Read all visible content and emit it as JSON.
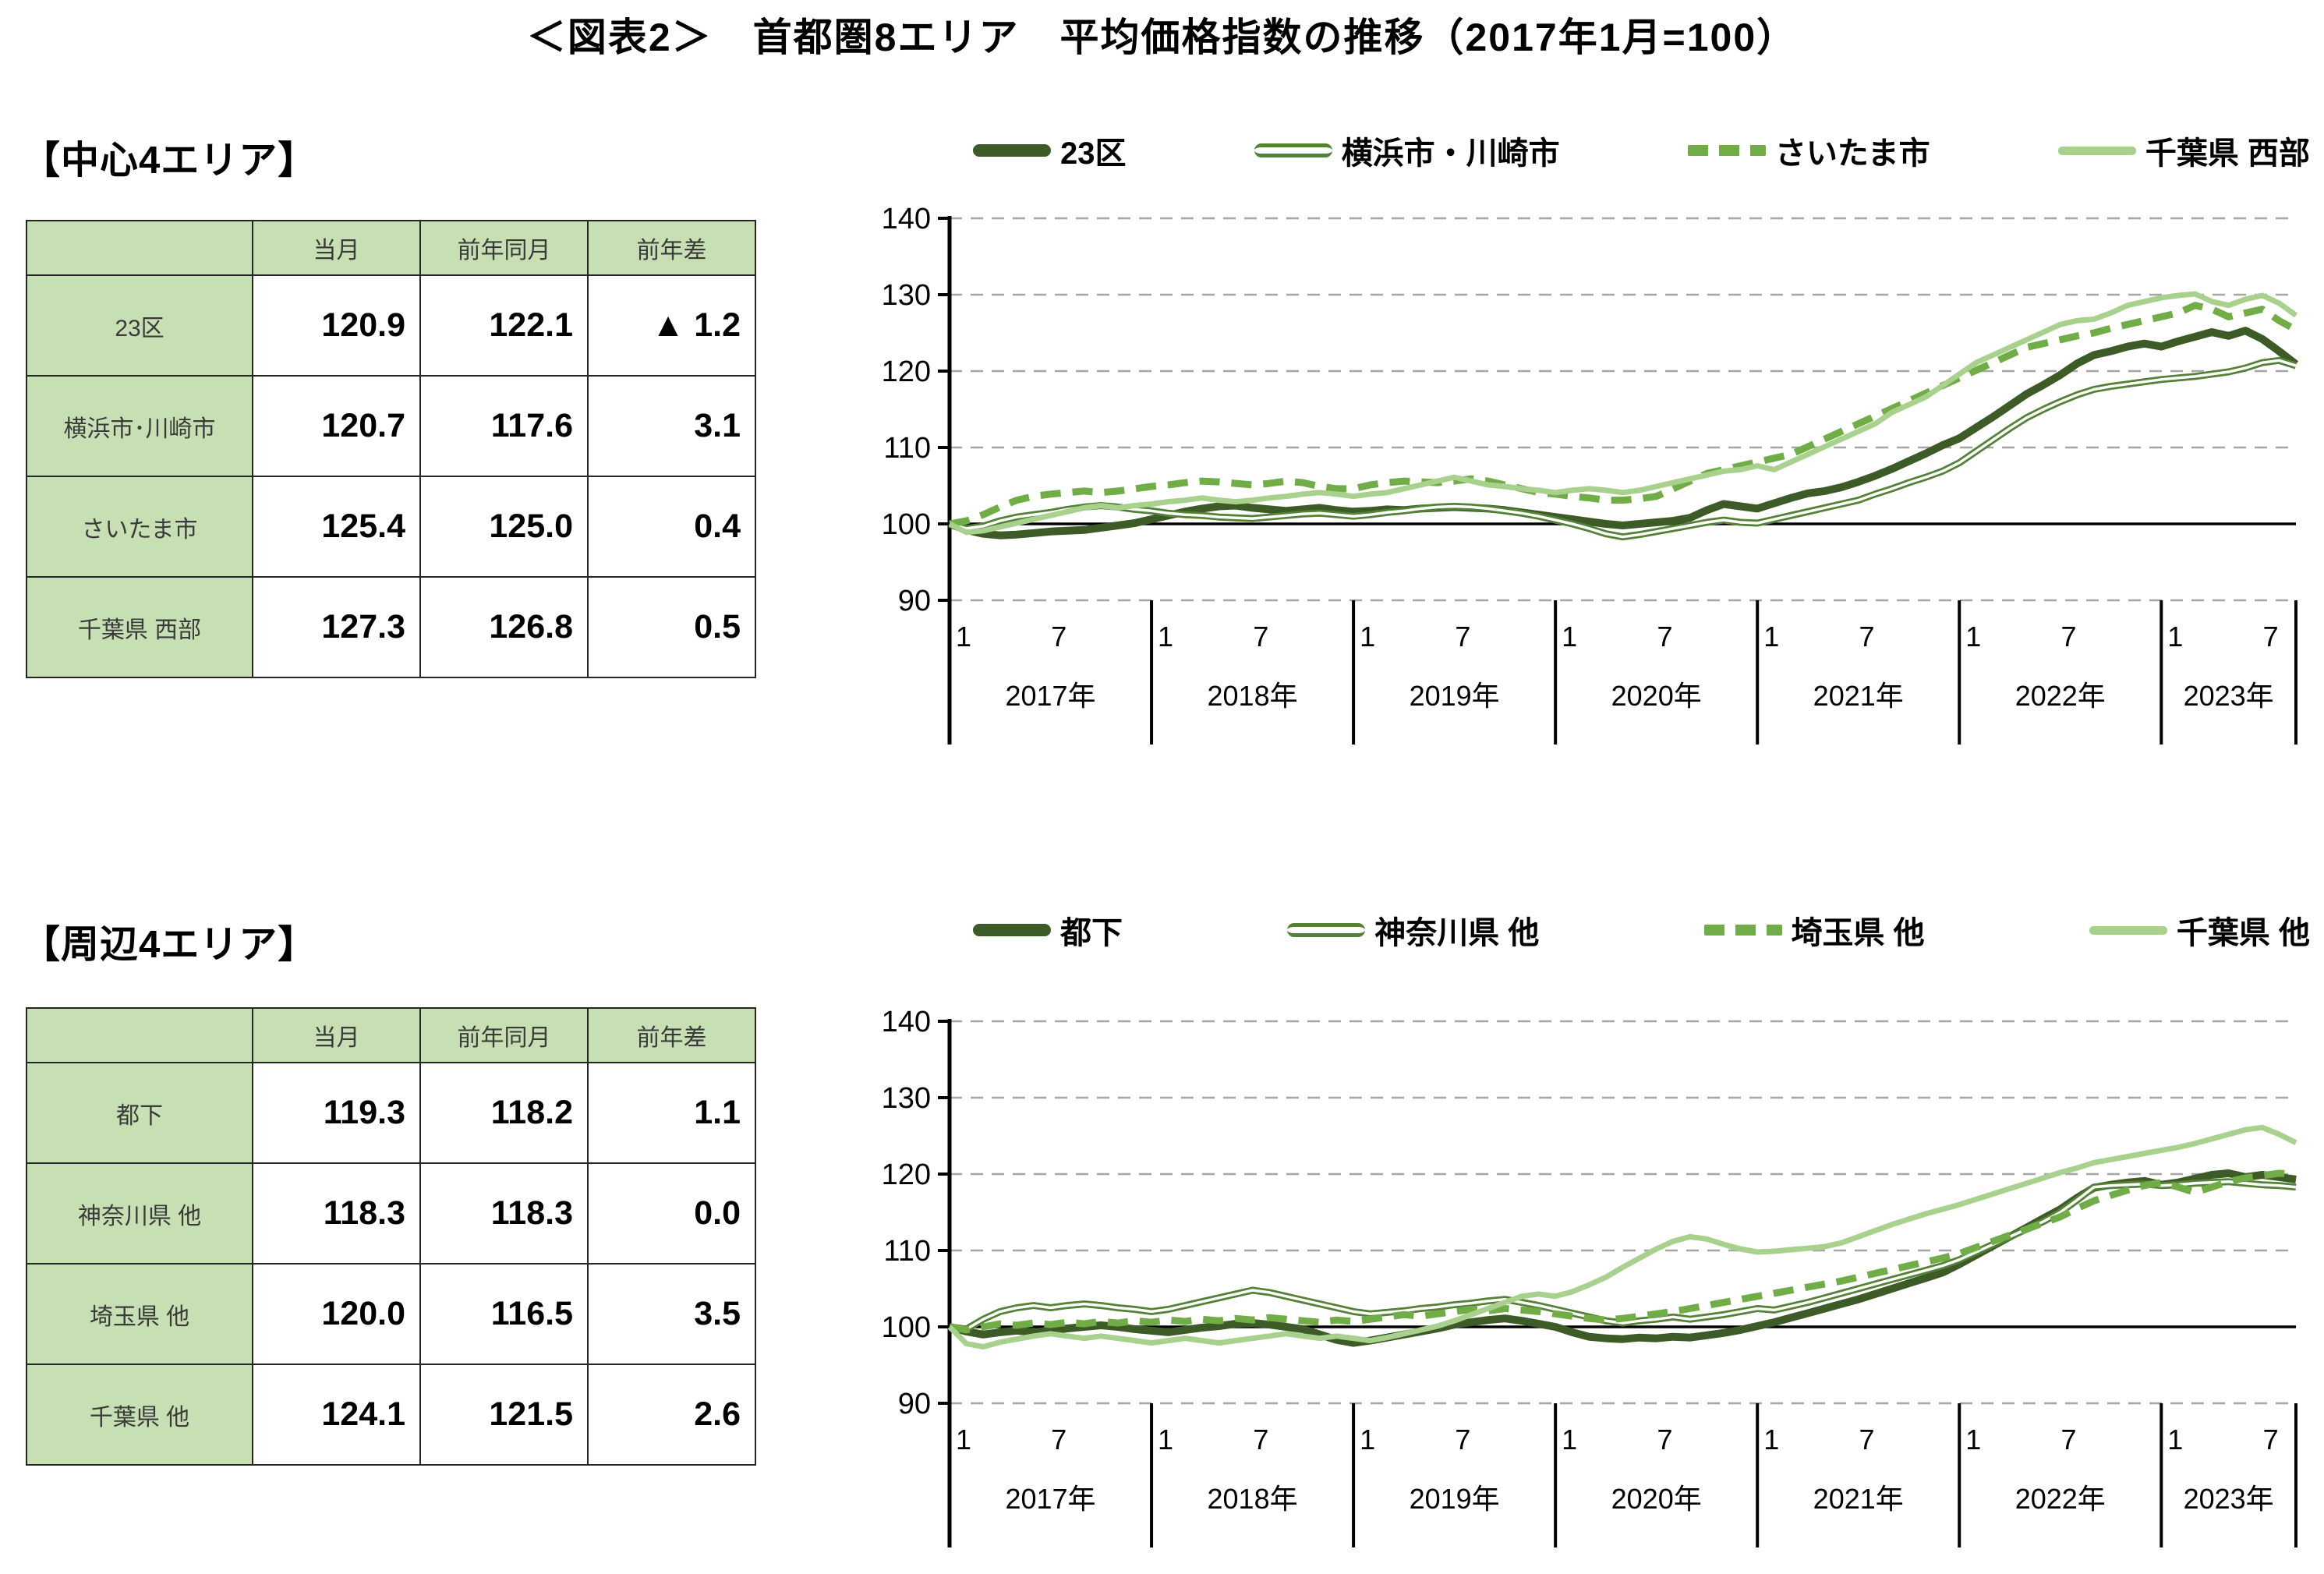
{
  "title": "＜図表2＞　首都圏8エリア　平均価格指数の推移（2017年1月=100）",
  "colors": {
    "dark_green": "#3c5b26",
    "mid_green": "#538135",
    "bright_green": "#70ad47",
    "light_green": "#a9d18e",
    "table_header_bg": "#c6e0b4",
    "grid_gray": "#a6a6a6",
    "axis_black": "#000000"
  },
  "sections": [
    {
      "heading": "【中心4エリア】",
      "table": {
        "columns": [
          "",
          "当月",
          "前年同月",
          "前年差"
        ],
        "rows": [
          {
            "label": "23区",
            "current": "120.9",
            "prev_year": "122.1",
            "diff": "▲ 1.2"
          },
          {
            "label": "横浜市･川崎市",
            "current": "120.7",
            "prev_year": "117.6",
            "diff": "3.1"
          },
          {
            "label": "さいたま市",
            "current": "125.4",
            "prev_year": "125.0",
            "diff": "0.4"
          },
          {
            "label": "千葉県 西部",
            "current": "127.3",
            "prev_year": "126.8",
            "diff": "0.5"
          }
        ]
      }
    },
    {
      "heading": "【周辺4エリア】",
      "table": {
        "columns": [
          "",
          "当月",
          "前年同月",
          "前年差"
        ],
        "rows": [
          {
            "label": "都下",
            "current": "119.3",
            "prev_year": "118.2",
            "diff": "1.1"
          },
          {
            "label": "神奈川県 他",
            "current": "118.3",
            "prev_year": "118.3",
            "diff": "0.0"
          },
          {
            "label": "埼玉県 他",
            "current": "120.0",
            "prev_year": "116.5",
            "diff": "3.5"
          },
          {
            "label": "千葉県 他",
            "current": "124.1",
            "prev_year": "121.5",
            "diff": "2.6"
          }
        ]
      }
    }
  ],
  "chart_data": [
    {
      "type": "line",
      "title": "中心4エリア 平均価格指数の推移",
      "x_unit": "month",
      "start": "2017-01",
      "end": "2023-09",
      "ylim": [
        90,
        140
      ],
      "yticks": [
        90,
        100,
        110,
        120,
        130,
        140
      ],
      "baseline": 100,
      "grid": "dashed-horizontal",
      "legend_position": "top",
      "x_axis": {
        "month_ticks": [
          "1",
          "7"
        ],
        "year_labels": [
          "2017年",
          "2018年",
          "2019年",
          "2020年",
          "2021年",
          "2022年",
          "2023年"
        ]
      },
      "series": [
        {
          "name": "23区",
          "style": "solid-thick",
          "color": "#3c5b26",
          "values": [
            100.0,
            99.2,
            98.7,
            98.5,
            98.6,
            98.8,
            99.0,
            99.1,
            99.2,
            99.5,
            99.8,
            100.1,
            100.6,
            101.1,
            101.6,
            102.0,
            102.3,
            102.4,
            102.1,
            101.9,
            101.7,
            101.9,
            102.1,
            101.8,
            101.6,
            101.7,
            101.9,
            101.8,
            102.0,
            102.1,
            102.2,
            102.1,
            102.0,
            101.8,
            101.5,
            101.2,
            100.9,
            100.6,
            100.3,
            100.0,
            99.8,
            100.0,
            100.2,
            100.4,
            100.8,
            101.8,
            102.6,
            102.3,
            102.0,
            102.7,
            103.4,
            104.0,
            104.3,
            104.8,
            105.5,
            106.3,
            107.2,
            108.2,
            109.2,
            110.3,
            111.2,
            112.6,
            114.0,
            115.5,
            117.0,
            118.2,
            119.5,
            121.0,
            122.1,
            122.6,
            123.2,
            123.6,
            123.2,
            123.9,
            124.5,
            125.1,
            124.6,
            125.3,
            124.2,
            122.6,
            120.9
          ]
        },
        {
          "name": "横浜市・川崎市",
          "style": "double",
          "color": "#538135",
          "values": [
            100.0,
            99.4,
            99.7,
            100.4,
            100.9,
            101.2,
            101.5,
            101.9,
            102.2,
            102.4,
            102.2,
            101.9,
            101.7,
            101.4,
            101.2,
            101.1,
            100.9,
            100.8,
            100.7,
            100.9,
            101.1,
            101.3,
            101.4,
            101.2,
            101.0,
            101.2,
            101.5,
            101.7,
            102.0,
            102.2,
            102.3,
            102.2,
            102.0,
            101.7,
            101.4,
            101.0,
            100.5,
            100.0,
            99.4,
            98.7,
            98.3,
            98.6,
            99.0,
            99.4,
            99.8,
            100.2,
            100.5,
            100.2,
            100.1,
            100.6,
            101.1,
            101.6,
            102.1,
            102.6,
            103.1,
            103.9,
            104.6,
            105.4,
            106.1,
            106.9,
            108.0,
            109.5,
            111.0,
            112.5,
            113.9,
            115.0,
            116.0,
            116.9,
            117.6,
            118.0,
            118.3,
            118.6,
            118.9,
            119.1,
            119.3,
            119.6,
            119.9,
            120.4,
            121.1,
            121.4,
            120.7
          ]
        },
        {
          "name": "さいたま市",
          "style": "dashed",
          "color": "#70ad47",
          "values": [
            100.0,
            100.4,
            101.2,
            102.2,
            103.1,
            103.6,
            103.9,
            104.1,
            104.3,
            104.1,
            104.3,
            104.6,
            104.9,
            105.1,
            105.4,
            105.6,
            105.5,
            105.3,
            105.1,
            105.3,
            105.6,
            105.4,
            104.9,
            104.6,
            104.6,
            105.1,
            105.4,
            105.6,
            105.5,
            105.4,
            105.6,
            105.9,
            105.6,
            105.1,
            104.6,
            104.1,
            103.9,
            103.6,
            103.4,
            103.1,
            103.1,
            103.3,
            103.6,
            104.6,
            105.6,
            106.6,
            107.1,
            107.6,
            108.1,
            108.6,
            109.1,
            110.1,
            111.1,
            112.1,
            113.1,
            114.1,
            115.1,
            116.1,
            117.1,
            118.1,
            119.1,
            120.1,
            121.1,
            122.1,
            123.1,
            123.6,
            124.1,
            124.6,
            125.0,
            125.6,
            126.1,
            126.6,
            127.1,
            127.6,
            128.6,
            128.1,
            127.1,
            127.6,
            128.1,
            126.6,
            125.4
          ]
        },
        {
          "name": "千葉県 西部",
          "style": "solid",
          "color": "#a9d18e",
          "values": [
            100.0,
            98.9,
            99.1,
            99.6,
            100.1,
            100.6,
            101.1,
            101.6,
            102.1,
            102.4,
            102.1,
            102.4,
            102.6,
            102.9,
            103.1,
            103.4,
            103.1,
            102.9,
            103.1,
            103.4,
            103.6,
            103.9,
            104.1,
            103.9,
            103.6,
            103.9,
            104.1,
            104.6,
            105.1,
            105.6,
            106.1,
            105.6,
            105.1,
            104.9,
            104.6,
            104.4,
            104.1,
            104.4,
            104.6,
            104.4,
            104.1,
            104.4,
            104.9,
            105.4,
            105.9,
            106.4,
            106.9,
            107.1,
            107.6,
            107.1,
            108.1,
            109.1,
            110.1,
            111.1,
            112.1,
            113.1,
            114.6,
            115.6,
            116.6,
            118.1,
            119.6,
            121.1,
            122.1,
            123.1,
            124.1,
            125.1,
            126.1,
            126.6,
            126.8,
            127.6,
            128.6,
            129.1,
            129.6,
            129.9,
            130.1,
            129.1,
            128.6,
            129.4,
            129.9,
            128.9,
            127.3
          ]
        }
      ]
    },
    {
      "type": "line",
      "title": "周辺4エリア 平均価格指数の推移",
      "x_unit": "month",
      "start": "2017-01",
      "end": "2023-09",
      "ylim": [
        90,
        140
      ],
      "yticks": [
        90,
        100,
        110,
        120,
        130,
        140
      ],
      "baseline": 100,
      "grid": "dashed-horizontal",
      "legend_position": "top",
      "x_axis": {
        "month_ticks": [
          "1",
          "7"
        ],
        "year_labels": [
          "2017年",
          "2018年",
          "2019年",
          "2020年",
          "2021年",
          "2022年",
          "2023年"
        ]
      },
      "series": [
        {
          "name": "都下",
          "style": "solid-thick",
          "color": "#3c5b26",
          "values": [
            100.0,
            99.4,
            99.0,
            99.3,
            99.5,
            99.3,
            99.5,
            99.8,
            100.0,
            100.2,
            100.0,
            99.7,
            99.5,
            99.3,
            99.6,
            99.9,
            100.1,
            100.4,
            100.5,
            100.3,
            100.0,
            99.7,
            99.0,
            98.3,
            97.9,
            98.2,
            98.6,
            99.0,
            99.4,
            99.8,
            100.3,
            100.6,
            100.9,
            101.1,
            100.8,
            100.4,
            100.0,
            99.3,
            98.7,
            98.5,
            98.4,
            98.6,
            98.5,
            98.7,
            98.6,
            98.9,
            99.2,
            99.6,
            100.1,
            100.6,
            101.2,
            101.8,
            102.4,
            103.0,
            103.6,
            104.3,
            105.0,
            105.7,
            106.4,
            107.1,
            108.2,
            109.4,
            110.6,
            111.8,
            113.0,
            114.2,
            115.4,
            116.9,
            118.2,
            118.6,
            118.9,
            119.1,
            118.6,
            118.9,
            119.4,
            119.9,
            120.1,
            119.6,
            119.9,
            119.6,
            119.3
          ]
        },
        {
          "name": "神奈川県 他",
          "style": "double",
          "color": "#538135",
          "values": [
            100.0,
            99.7,
            101.0,
            102.0,
            102.5,
            102.8,
            102.5,
            102.8,
            103.0,
            102.8,
            102.5,
            102.3,
            102.0,
            102.3,
            102.8,
            103.3,
            103.8,
            104.3,
            104.8,
            104.5,
            104.0,
            103.5,
            103.0,
            102.5,
            102.0,
            101.7,
            101.9,
            102.1,
            102.4,
            102.6,
            102.9,
            103.1,
            103.4,
            103.6,
            103.2,
            102.8,
            102.3,
            101.8,
            101.3,
            100.8,
            100.5,
            100.8,
            101.0,
            101.3,
            101.0,
            101.3,
            101.6,
            102.0,
            102.4,
            102.2,
            102.7,
            103.2,
            103.8,
            104.4,
            105.0,
            105.6,
            106.2,
            106.8,
            107.4,
            108.0,
            108.8,
            109.8,
            110.8,
            111.8,
            112.8,
            113.8,
            115.0,
            116.6,
            118.3,
            118.5,
            118.6,
            118.7,
            118.5,
            118.6,
            118.8,
            118.9,
            119.0,
            118.8,
            118.6,
            118.5,
            118.3
          ]
        },
        {
          "name": "埼玉県 他",
          "style": "dashed",
          "color": "#70ad47",
          "values": [
            100.0,
            99.6,
            100.0,
            100.4,
            100.2,
            100.5,
            100.3,
            100.6,
            100.4,
            100.7,
            100.5,
            100.8,
            100.6,
            100.9,
            100.7,
            101.0,
            100.8,
            101.1,
            100.9,
            101.2,
            101.0,
            100.8,
            100.6,
            100.9,
            100.7,
            101.0,
            101.3,
            101.6,
            101.4,
            101.7,
            102.0,
            102.3,
            102.1,
            102.4,
            102.2,
            102.0,
            101.7,
            101.4,
            101.1,
            100.9,
            101.1,
            101.4,
            101.7,
            102.0,
            102.4,
            102.8,
            103.2,
            103.6,
            104.0,
            104.4,
            104.8,
            105.2,
            105.6,
            106.0,
            106.5,
            107.0,
            107.5,
            108.0,
            108.5,
            109.0,
            109.6,
            110.4,
            111.2,
            112.0,
            112.8,
            113.6,
            114.4,
            115.5,
            116.5,
            117.2,
            117.9,
            118.5,
            118.9,
            118.3,
            117.6,
            118.3,
            119.0,
            119.5,
            119.8,
            120.1,
            120.0
          ]
        },
        {
          "name": "千葉県 他",
          "style": "solid",
          "color": "#a9d18e",
          "values": [
            100.0,
            97.8,
            97.4,
            98.0,
            98.4,
            98.8,
            99.1,
            98.8,
            98.5,
            98.8,
            98.5,
            98.2,
            97.9,
            98.2,
            98.5,
            98.2,
            97.9,
            98.2,
            98.5,
            98.8,
            99.1,
            98.8,
            98.5,
            98.8,
            98.5,
            98.2,
            98.6,
            99.1,
            99.6,
            100.1,
            100.8,
            101.6,
            102.4,
            103.2,
            104.0,
            104.3,
            104.0,
            104.6,
            105.5,
            106.5,
            107.8,
            109.0,
            110.2,
            111.2,
            111.8,
            111.5,
            110.8,
            110.2,
            109.8,
            109.9,
            110.1,
            110.3,
            110.5,
            111.0,
            111.8,
            112.6,
            113.4,
            114.1,
            114.8,
            115.4,
            116.0,
            116.7,
            117.4,
            118.1,
            118.8,
            119.5,
            120.2,
            120.8,
            121.5,
            121.9,
            122.3,
            122.7,
            123.1,
            123.5,
            124.0,
            124.6,
            125.2,
            125.8,
            126.1,
            125.2,
            124.1
          ]
        }
      ]
    }
  ]
}
